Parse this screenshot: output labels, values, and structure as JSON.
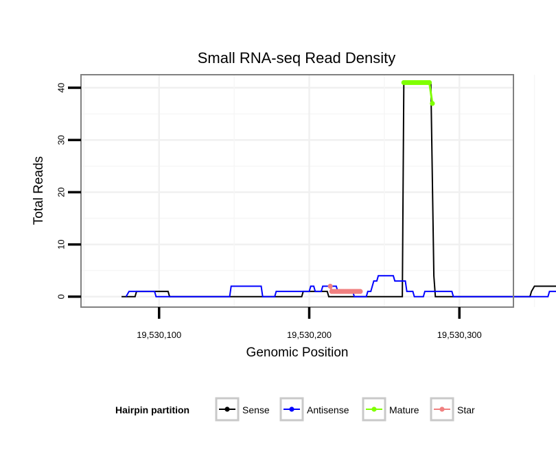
{
  "chart_data": {
    "type": "line",
    "title": "Small RNA-seq Read Density",
    "xlabel": "Genomic Position",
    "ylabel": "Total Reads",
    "xlim": [
      19530048,
      19530336
    ],
    "ylim": [
      -2,
      42.5
    ],
    "x_ticks": [
      19530100,
      19530200,
      19530300
    ],
    "x_tick_labels": [
      "19,530,100",
      "19,530,200",
      "19,530,300"
    ],
    "y_ticks": [
      0,
      10,
      20,
      30,
      40
    ],
    "y_tick_labels": [
      "0",
      "10",
      "20",
      "30",
      "40"
    ],
    "grid": true,
    "legend": {
      "title": "Hairpin partition",
      "position": "bottom",
      "entries": [
        {
          "name": "Sense",
          "color": "#000000"
        },
        {
          "name": "Antisense",
          "color": "#0000ff"
        },
        {
          "name": "Mature",
          "color": "#7fff00"
        },
        {
          "name": "Star",
          "color": "#f08080"
        }
      ]
    },
    "series": [
      {
        "name": "Sense",
        "color": "#000000",
        "points": [
          [
            19530075,
            0
          ],
          [
            19530084,
            0
          ],
          [
            19530085,
            1
          ],
          [
            19530106,
            1
          ],
          [
            19530107,
            0
          ],
          [
            19530195,
            0
          ],
          [
            19530196,
            1
          ],
          [
            19530212,
            1
          ],
          [
            19530213,
            0
          ],
          [
            19530262,
            0
          ],
          [
            19530263,
            41
          ],
          [
            19530281,
            41
          ],
          [
            19530283,
            4
          ],
          [
            19530284,
            0
          ],
          [
            19530347,
            0
          ],
          [
            19530348,
            1
          ],
          [
            19530350,
            2
          ],
          [
            19530371,
            2
          ],
          [
            19530372,
            0
          ],
          [
            19530379,
            0
          ]
        ]
      },
      {
        "name": "Antisense",
        "color": "#0000ff",
        "points": [
          [
            19530078,
            0
          ],
          [
            19530080,
            1
          ],
          [
            19530097,
            1
          ],
          [
            19530098,
            0
          ],
          [
            19530147,
            0
          ],
          [
            19530148,
            2
          ],
          [
            19530168,
            2
          ],
          [
            19530169,
            0
          ],
          [
            19530177,
            0
          ],
          [
            19530178,
            1
          ],
          [
            19530200,
            1
          ],
          [
            19530201,
            2
          ],
          [
            19530203,
            2
          ],
          [
            19530204,
            1
          ],
          [
            19530208,
            1
          ],
          [
            19530209,
            2
          ],
          [
            19530218,
            2
          ],
          [
            19530219,
            1
          ],
          [
            19530229,
            1
          ],
          [
            19530230,
            0
          ],
          [
            19530238,
            0
          ],
          [
            19530239,
            1
          ],
          [
            19530241,
            1
          ],
          [
            19530242,
            2
          ],
          [
            19530243,
            3
          ],
          [
            19530245,
            3
          ],
          [
            19530246,
            4
          ],
          [
            19530256,
            4
          ],
          [
            19530257,
            3
          ],
          [
            19530264,
            3
          ],
          [
            19530265,
            1
          ],
          [
            19530269,
            1
          ],
          [
            19530270,
            0
          ],
          [
            19530276,
            0
          ],
          [
            19530277,
            1
          ],
          [
            19530295,
            1
          ],
          [
            19530296,
            0
          ],
          [
            19530359,
            0
          ],
          [
            19530360,
            1
          ],
          [
            19530374,
            1
          ],
          [
            19530375,
            0
          ]
        ]
      },
      {
        "name": "Mature",
        "color": "#7fff00",
        "points": [
          [
            19530263,
            41
          ],
          [
            19530264,
            41
          ],
          [
            19530265,
            41
          ],
          [
            19530266,
            41
          ],
          [
            19530267,
            41
          ],
          [
            19530268,
            41
          ],
          [
            19530269,
            41
          ],
          [
            19530270,
            41
          ],
          [
            19530271,
            41
          ],
          [
            19530272,
            41
          ],
          [
            19530273,
            41
          ],
          [
            19530274,
            41
          ],
          [
            19530275,
            41
          ],
          [
            19530276,
            41
          ],
          [
            19530277,
            41
          ],
          [
            19530278,
            41
          ],
          [
            19530279,
            41
          ],
          [
            19530280,
            41
          ],
          [
            19530282,
            37
          ]
        ]
      },
      {
        "name": "Star",
        "color": "#f08080",
        "points": [
          [
            19530214,
            2
          ],
          [
            19530215,
            1
          ],
          [
            19530216,
            1
          ],
          [
            19530217,
            1
          ],
          [
            19530218,
            1
          ],
          [
            19530219,
            1
          ],
          [
            19530220,
            1
          ],
          [
            19530221,
            1
          ],
          [
            19530222,
            1
          ],
          [
            19530223,
            1
          ],
          [
            19530224,
            1
          ],
          [
            19530225,
            1
          ],
          [
            19530226,
            1
          ],
          [
            19530227,
            1
          ],
          [
            19530228,
            1
          ],
          [
            19530229,
            1
          ],
          [
            19530230,
            1
          ],
          [
            19530231,
            1
          ],
          [
            19530232,
            1
          ],
          [
            19530233,
            1
          ],
          [
            19530234,
            1
          ]
        ]
      }
    ]
  }
}
